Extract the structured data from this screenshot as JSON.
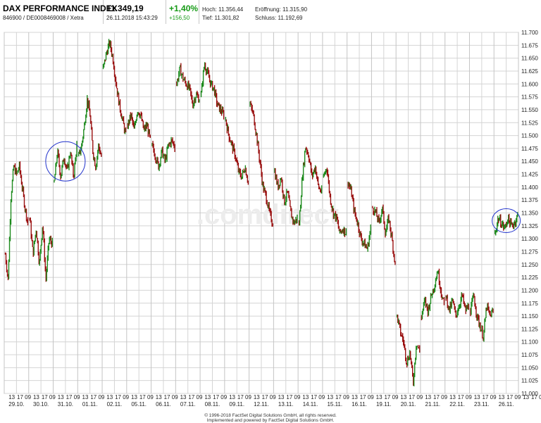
{
  "header": {
    "index_name": "DAX PERFORMANCE INDEX",
    "identifier": "846900 / DE0008469008 / Xetra",
    "price": "11.349,19",
    "datetime": "26.11.2018 15:43:29",
    "change_pct": "+1,40%",
    "change_abs": "+156,50",
    "high_label": "Hoch:",
    "high_value": "11.356,44",
    "open_label": "Eröffnung:",
    "open_value": "11.315,90",
    "low_label": "Tief:",
    "low_value": "11.301,82",
    "close_label": "Schluss:",
    "close_value": "11.192,69"
  },
  "watermark": ".comdirect",
  "footer": {
    "line1": "© 1996-2018 FactSet Digital Solutions GmbH, all rights reserved.",
    "line2": "Implemented and powered by FactSet Digital Solutions GmbH."
  },
  "colors": {
    "up": "#1d8a1d",
    "down": "#9a1010",
    "grid": "#d4d4d4",
    "circle": "#2233cc",
    "bg": "#ffffff"
  },
  "chart_data": {
    "type": "line",
    "subtype": "intraday-ohlc",
    "y_range": [
      11000,
      11700
    ],
    "y_tick_labels": [
      "11.000",
      "11.025",
      "11.050",
      "11.075",
      "11.100",
      "11.125",
      "11.150",
      "11.175",
      "11.200",
      "11.225",
      "11.250",
      "11.275",
      "11.300",
      "11.325",
      "11.350",
      "11.375",
      "11.400",
      "11.425",
      "11.450",
      "11.475",
      "11.500",
      "11.525",
      "11.550",
      "11.575",
      "11.600",
      "11.625",
      "11.650",
      "11.675",
      "11.700"
    ],
    "y_tick_values": [
      11000,
      11025,
      11050,
      11075,
      11100,
      11125,
      11150,
      11175,
      11200,
      11225,
      11250,
      11275,
      11300,
      11325,
      11350,
      11375,
      11400,
      11425,
      11450,
      11475,
      11500,
      11525,
      11550,
      11575,
      11600,
      11625,
      11650,
      11675,
      11700
    ],
    "hour_tick_labels": [
      "13",
      "17 09",
      "13",
      "17 09",
      "13",
      "17 09",
      "13",
      "17 09",
      "13",
      "17 09",
      "13",
      "17 09",
      "13",
      "17 09",
      "13",
      "17 09",
      "13",
      "17 09",
      "13",
      "17 09",
      "13",
      "17 09",
      "13",
      "17 09",
      "13",
      "17 09",
      "13",
      "17 09",
      "13",
      "17 09",
      "13",
      "17 09",
      "13",
      "17 09",
      "13",
      "17 09",
      "13",
      "17 09",
      "13",
      "17 09",
      "13",
      "17 09",
      "13",
      "17 09",
      "13",
      "17 09",
      "13"
    ],
    "date_labels": [
      "29.10.",
      "30.10.",
      "31.10.",
      "01.11.",
      "02.11.",
      "05.11.",
      "06.11.",
      "07.11.",
      "08.11.",
      "09.11.",
      "12.11.",
      "13.11.",
      "14.11.",
      "15.11.",
      "16.11.",
      "19.11.",
      "20.11.",
      "21.11.",
      "22.11.",
      "23.11.",
      "26.11."
    ],
    "x_categories": [
      "29.10.",
      "30.10.",
      "31.10.",
      "01.11.",
      "02.11.",
      "05.11.",
      "06.11.",
      "07.11.",
      "08.11.",
      "09.11.",
      "12.11.",
      "13.11.",
      "14.11.",
      "15.11.",
      "16.11.",
      "19.11.",
      "20.11.",
      "21.11.",
      "22.11.",
      "23.11.",
      "26.11."
    ],
    "days": [
      {
        "date": "29.10.",
        "path": [
          11270,
          11220,
          11380,
          11440,
          11425,
          11440,
          11400,
          11360,
          11330
        ]
      },
      {
        "date": "30.10.",
        "path": [
          11340,
          11270,
          11320,
          11250,
          11330,
          11220,
          11300,
          11290
        ]
      },
      {
        "date": "31.10.",
        "path": [
          11410,
          11470,
          11420,
          11460,
          11430,
          11470,
          11420,
          11480
        ]
      },
      {
        "date": "01.11.",
        "path": [
          11460,
          11480,
          11520,
          11570,
          11540,
          11470,
          11440,
          11480,
          11460
        ]
      },
      {
        "date": "02.11.",
        "path": [
          11630,
          11660,
          11680,
          11650,
          11600,
          11560,
          11530,
          11500
        ]
      },
      {
        "date": "05.11.",
        "path": [
          11520,
          11540,
          11510,
          11550,
          11540,
          11510,
          11520,
          11490
        ]
      },
      {
        "date": "06.11.",
        "path": [
          11480,
          11460,
          11440,
          11470,
          11450,
          11480,
          11490,
          11480
        ]
      },
      {
        "date": "07.11.",
        "path": [
          11600,
          11630,
          11610,
          11600,
          11590,
          11560,
          11580,
          11570
        ]
      },
      {
        "date": "08.11.",
        "path": [
          11580,
          11640,
          11620,
          11600,
          11590,
          11560,
          11550,
          11540
        ]
      },
      {
        "date": "09.11.",
        "path": [
          11530,
          11500,
          11480,
          11460,
          11430,
          11420,
          11440,
          11410
        ]
      },
      {
        "date": "12.11.",
        "path": [
          11560,
          11540,
          11500,
          11450,
          11400,
          11380,
          11350,
          11330
        ]
      },
      {
        "date": "13.11.",
        "path": [
          11430,
          11400,
          11420,
          11370,
          11390,
          11350,
          11330,
          11340
        ]
      },
      {
        "date": "14.11.",
        "path": [
          11330,
          11420,
          11480,
          11460,
          11420,
          11440,
          11400,
          11390
        ]
      },
      {
        "date": "15.11.",
        "path": [
          11420,
          11440,
          11380,
          11350,
          11340,
          11310,
          11320,
          11310
        ]
      },
      {
        "date": "16.11.",
        "path": [
          11410,
          11390,
          11350,
          11330,
          11300,
          11290,
          11280,
          11320
        ]
      },
      {
        "date": "19.11.",
        "path": [
          11360,
          11350,
          11330,
          11360,
          11310,
          11340,
          11300,
          11250
        ]
      },
      {
        "date": "20.11.",
        "path": [
          11150,
          11120,
          11100,
          11060,
          11080,
          11020,
          11100,
          11080
        ]
      },
      {
        "date": "21.11.",
        "path": [
          11150,
          11180,
          11160,
          11190,
          11210,
          11240,
          11200,
          11170
        ]
      },
      {
        "date": "22.11.",
        "path": [
          11190,
          11160,
          11180,
          11150,
          11170,
          11190,
          11160,
          11170
        ]
      },
      {
        "date": "23.11.",
        "path": [
          11160,
          11190,
          11150,
          11130,
          11110,
          11170,
          11150,
          11160
        ]
      },
      {
        "date": "26.11.",
        "path": [
          11310,
          11340,
          11330,
          11320,
          11340,
          11325,
          11330,
          11345
        ]
      }
    ],
    "annotations": [
      {
        "type": "circle",
        "near_date": "31.10.",
        "around_value": 11450
      },
      {
        "type": "circle",
        "near_date": "26.11.",
        "around_value": 11335
      }
    ],
    "grid": true,
    "legend": "none"
  }
}
